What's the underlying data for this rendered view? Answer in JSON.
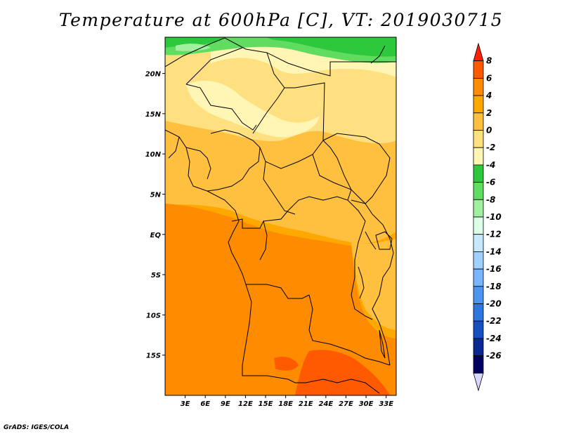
{
  "title": "Temperature at 600hPa [C], VT: 2019030715",
  "credit": "GrADS: IGES/COLA",
  "map": {
    "lon_range": [
      0,
      34.5
    ],
    "lat_range": [
      -20,
      24.5
    ],
    "lat_ticks": [
      {
        "value": 20,
        "label": "20N"
      },
      {
        "value": 15,
        "label": "15N"
      },
      {
        "value": 10,
        "label": "10N"
      },
      {
        "value": 5,
        "label": "5N"
      },
      {
        "value": 0,
        "label": "EQ"
      },
      {
        "value": -5,
        "label": "5S"
      },
      {
        "value": -10,
        "label": "10S"
      },
      {
        "value": -15,
        "label": "15S"
      }
    ],
    "lon_ticks": [
      {
        "value": 3,
        "label": "3E"
      },
      {
        "value": 6,
        "label": "6E"
      },
      {
        "value": 9,
        "label": "9E"
      },
      {
        "value": 12,
        "label": "12E"
      },
      {
        "value": 15,
        "label": "15E"
      },
      {
        "value": 18,
        "label": "18E"
      },
      {
        "value": 21,
        "label": "21E"
      },
      {
        "value": 24,
        "label": "24E"
      },
      {
        "value": 27,
        "label": "27E"
      },
      {
        "value": 30,
        "label": "30E"
      },
      {
        "value": 33,
        "label": "33E"
      }
    ]
  },
  "colorbar": {
    "labels": [
      "8",
      "6",
      "4",
      "2",
      "0",
      "-2",
      "-4",
      "-6",
      "-8",
      "-10",
      "-12",
      "-14",
      "-16",
      "-18",
      "-20",
      "-22",
      "-24",
      "-26"
    ],
    "colors": [
      "#ff2000",
      "#ff5a00",
      "#ff8c00",
      "#ffa800",
      "#ffc040",
      "#ffe080",
      "#fff5b4",
      "#2ec83c",
      "#60dc60",
      "#a0f0a0",
      "#dcffe8",
      "#c8e8ff",
      "#a0d0ff",
      "#78b4ff",
      "#4c96f0",
      "#2c78e0",
      "#1450c0",
      "#0a2890",
      "#000060",
      "#d8d8ff"
    ]
  }
}
